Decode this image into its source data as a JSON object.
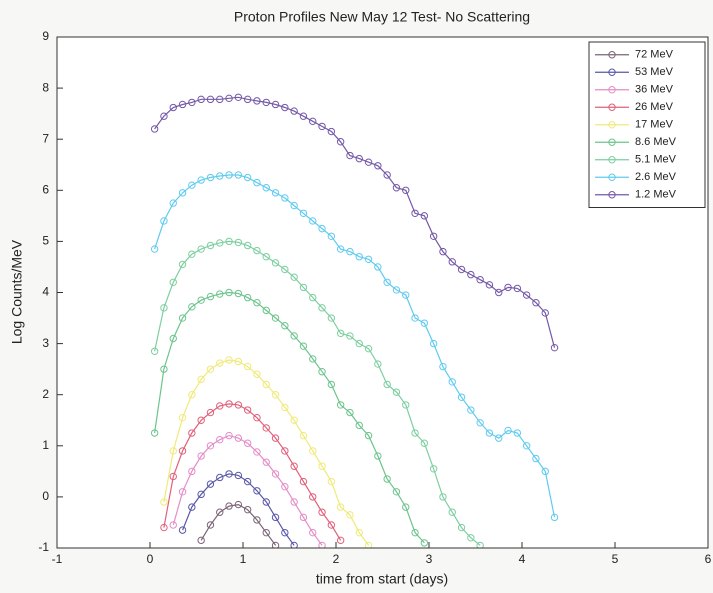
{
  "chart_data": {
    "type": "line",
    "title": "Proton Profiles New May 12 Test- No Scattering",
    "x_label": "time from start (days)",
    "y_label": "Log Counts/MeV",
    "xlim": [
      -1,
      6
    ],
    "ylim": [
      -1,
      9
    ],
    "xticks": [
      -1,
      0,
      1,
      2,
      3,
      4,
      5,
      6
    ],
    "yticks": [
      -1,
      0,
      1,
      2,
      3,
      4,
      5,
      6,
      7,
      8,
      9
    ],
    "legend": "upper right",
    "x": [
      0.05,
      0.15,
      0.25,
      0.35,
      0.45,
      0.55,
      0.65,
      0.75,
      0.85,
      0.95,
      1.05,
      1.15,
      1.25,
      1.35,
      1.45,
      1.55,
      1.65,
      1.75,
      1.85,
      1.95,
      2.05,
      2.15,
      2.25,
      2.35,
      2.45,
      2.55,
      2.65,
      2.75,
      2.85,
      2.95,
      3.05,
      3.15,
      3.25,
      3.35,
      3.45,
      3.55,
      3.65,
      3.75,
      3.85,
      3.95,
      4.05,
      4.15,
      4.25,
      4.35
    ],
    "series": [
      {
        "name": "72 MeV",
        "color": "#7a6478",
        "values": [
          null,
          null,
          null,
          null,
          null,
          -0.85,
          -0.55,
          -0.3,
          -0.18,
          -0.15,
          -0.25,
          -0.45,
          -0.7,
          -0.95,
          null,
          null,
          null,
          null,
          null,
          null,
          null,
          null,
          null,
          null,
          null,
          null,
          null,
          null,
          null,
          null,
          null,
          null,
          null,
          null,
          null,
          null,
          null,
          null,
          null,
          null,
          null,
          null,
          null,
          null
        ]
      },
      {
        "name": "53 MeV",
        "color": "#5a58a8",
        "values": [
          null,
          null,
          null,
          -0.65,
          -0.2,
          0.05,
          0.25,
          0.38,
          0.45,
          0.42,
          0.3,
          0.12,
          -0.1,
          -0.4,
          -0.7,
          -0.95,
          null,
          null,
          null,
          null,
          null,
          null,
          null,
          null,
          null,
          null,
          null,
          null,
          null,
          null,
          null,
          null,
          null,
          null,
          null,
          null,
          null,
          null,
          null,
          null,
          null,
          null,
          null,
          null
        ]
      },
      {
        "name": "36 MeV",
        "color": "#e58cc8",
        "values": [
          null,
          null,
          -0.55,
          0.1,
          0.5,
          0.8,
          1.0,
          1.12,
          1.2,
          1.15,
          1.05,
          0.88,
          0.68,
          0.45,
          0.2,
          -0.1,
          -0.4,
          -0.7,
          -0.95,
          null,
          null,
          null,
          null,
          null,
          null,
          null,
          null,
          null,
          null,
          null,
          null,
          null,
          null,
          null,
          null,
          null,
          null,
          null,
          null,
          null,
          null,
          null,
          null,
          null
        ]
      },
      {
        "name": "26 MeV",
        "color": "#e0607a",
        "values": [
          null,
          -0.6,
          0.4,
          0.9,
          1.25,
          1.5,
          1.65,
          1.78,
          1.82,
          1.8,
          1.7,
          1.55,
          1.35,
          1.15,
          0.9,
          0.6,
          0.3,
          0.0,
          -0.3,
          -0.55,
          -0.85,
          null,
          null,
          null,
          null,
          null,
          null,
          null,
          null,
          null,
          null,
          null,
          null,
          null,
          null,
          null,
          null,
          null,
          null,
          null,
          null,
          null,
          null,
          null
        ]
      },
      {
        "name": "17 MeV",
        "color": "#f0ea78",
        "values": [
          null,
          -0.1,
          0.9,
          1.55,
          2.0,
          2.3,
          2.5,
          2.62,
          2.68,
          2.65,
          2.55,
          2.4,
          2.2,
          2.0,
          1.75,
          1.5,
          1.2,
          0.9,
          0.6,
          0.3,
          -0.2,
          -0.35,
          -0.7,
          -0.95,
          null,
          null,
          null,
          null,
          null,
          null,
          null,
          null,
          null,
          null,
          null,
          null,
          null,
          null,
          null,
          null,
          null,
          null,
          null,
          null
        ]
      },
      {
        "name": "8.6 MeV",
        "color": "#6cc48c",
        "values": [
          1.25,
          2.5,
          3.1,
          3.5,
          3.72,
          3.85,
          3.92,
          3.97,
          4.0,
          3.98,
          3.9,
          3.8,
          3.65,
          3.5,
          3.35,
          3.15,
          2.95,
          2.7,
          2.45,
          2.2,
          1.8,
          1.65,
          1.4,
          1.2,
          0.8,
          0.35,
          0.1,
          -0.2,
          -0.7,
          -0.9,
          null,
          null,
          null,
          null,
          null,
          null,
          null,
          null,
          null,
          null,
          null,
          null,
          null,
          null
        ]
      },
      {
        "name": "5.1 MeV",
        "color": "#7dcfa0",
        "values": [
          2.85,
          3.7,
          4.2,
          4.55,
          4.75,
          4.85,
          4.92,
          4.97,
          5.0,
          4.98,
          4.92,
          4.82,
          4.7,
          4.58,
          4.45,
          4.3,
          4.1,
          3.9,
          3.7,
          3.5,
          3.2,
          3.15,
          3.0,
          2.9,
          2.6,
          2.2,
          2.05,
          1.8,
          1.25,
          1.05,
          0.55,
          0.0,
          -0.3,
          -0.6,
          -0.8,
          -0.95,
          null,
          null,
          null,
          null,
          null,
          null,
          null,
          null
        ]
      },
      {
        "name": "2.6 MeV",
        "color": "#5fcbf0",
        "values": [
          4.85,
          5.4,
          5.75,
          5.95,
          6.1,
          6.2,
          6.25,
          6.28,
          6.3,
          6.3,
          6.25,
          6.15,
          6.05,
          5.95,
          5.85,
          5.7,
          5.55,
          5.4,
          5.25,
          5.1,
          4.85,
          4.8,
          4.7,
          4.65,
          4.5,
          4.2,
          4.05,
          3.95,
          3.5,
          3.4,
          3.0,
          2.55,
          2.25,
          1.95,
          1.7,
          1.45,
          1.25,
          1.15,
          1.3,
          1.25,
          1.0,
          0.75,
          0.5,
          -0.4
        ]
      },
      {
        "name": "1.2 MeV",
        "color": "#7458a8",
        "values": [
          7.2,
          7.45,
          7.62,
          7.68,
          7.72,
          7.78,
          7.78,
          7.78,
          7.8,
          7.82,
          7.78,
          7.75,
          7.72,
          7.68,
          7.62,
          7.55,
          7.45,
          7.35,
          7.25,
          7.15,
          6.95,
          6.68,
          6.62,
          6.55,
          6.48,
          6.3,
          6.05,
          6.0,
          5.55,
          5.5,
          5.1,
          4.8,
          4.6,
          4.45,
          4.35,
          4.25,
          4.15,
          4.0,
          4.1,
          4.08,
          3.95,
          3.8,
          3.6,
          2.92
        ]
      }
    ]
  }
}
